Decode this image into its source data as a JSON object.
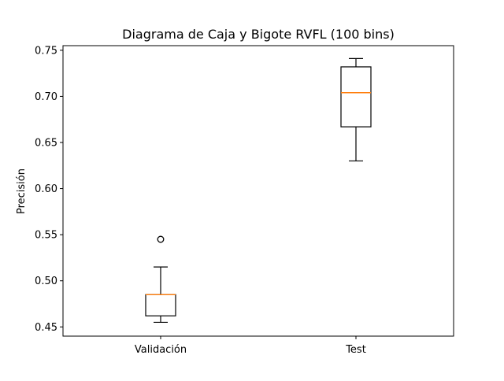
{
  "chart_data": {
    "type": "boxplot",
    "title": "Diagrama de Caja y Bigote RVFL (100 bins)",
    "xlabel": "",
    "ylabel": "Precisión",
    "ylim": [
      0.44,
      0.755
    ],
    "yticks": [
      "0.45",
      "0.50",
      "0.55",
      "0.60",
      "0.65",
      "0.70",
      "0.75"
    ],
    "grid": false,
    "categories": [
      "Validación",
      "Test"
    ],
    "boxes": [
      {
        "category": "Validación",
        "whisker_low": 0.455,
        "q1": 0.462,
        "median": 0.485,
        "q3": 0.485,
        "whisker_high": 0.515,
        "outliers": [
          0.545
        ]
      },
      {
        "category": "Test",
        "whisker_low": 0.63,
        "q1": 0.667,
        "median": 0.704,
        "q3": 0.732,
        "whisker_high": 0.741,
        "outliers": []
      }
    ],
    "colors": {
      "box": "#000000",
      "median": "#ff7f0e",
      "axes": "#000000",
      "background": "#ffffff"
    }
  }
}
